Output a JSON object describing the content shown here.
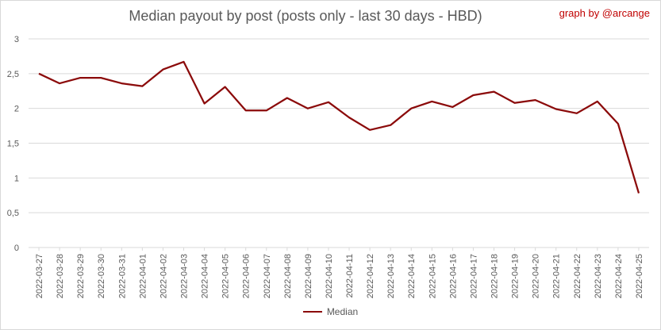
{
  "chart_data": {
    "type": "line",
    "title": "Median payout by post (posts only - last 30 days - HBD)",
    "credit": "graph by @arcange",
    "xlabel": "",
    "ylabel": "",
    "ylim": [
      0,
      3
    ],
    "yticks": [
      "0",
      "0,5",
      "1",
      "1,5",
      "2",
      "2,5",
      "3"
    ],
    "ytick_values": [
      0,
      0.5,
      1,
      1.5,
      2,
      2.5,
      3
    ],
    "grid": true,
    "legend_position": "bottom",
    "categories": [
      "2022-03-27",
      "2022-03-28",
      "2022-03-29",
      "2022-03-30",
      "2022-03-31",
      "2022-04-01",
      "2022-04-02",
      "2022-04-03",
      "2022-04-04",
      "2022-04-05",
      "2022-04-06",
      "2022-04-07",
      "2022-04-08",
      "2022-04-09",
      "2022-04-10",
      "2022-04-11",
      "2022-04-12",
      "2022-04-13",
      "2022-04-14",
      "2022-04-15",
      "2022-04-16",
      "2022-04-17",
      "2022-04-18",
      "2022-04-19",
      "2022-04-20",
      "2022-04-21",
      "2022-04-22",
      "2022-04-23",
      "2022-04-24",
      "2022-04-25"
    ],
    "series": [
      {
        "name": "Median",
        "color": "#8b0a0a",
        "values": [
          2.5,
          2.36,
          2.44,
          2.44,
          2.36,
          2.32,
          2.56,
          2.67,
          2.07,
          2.31,
          1.97,
          1.97,
          2.15,
          2.0,
          2.09,
          1.87,
          1.69,
          1.76,
          2.0,
          2.1,
          2.02,
          2.19,
          2.24,
          2.08,
          2.12,
          1.99,
          1.93,
          2.1,
          1.78,
          0.78
        ]
      }
    ]
  }
}
